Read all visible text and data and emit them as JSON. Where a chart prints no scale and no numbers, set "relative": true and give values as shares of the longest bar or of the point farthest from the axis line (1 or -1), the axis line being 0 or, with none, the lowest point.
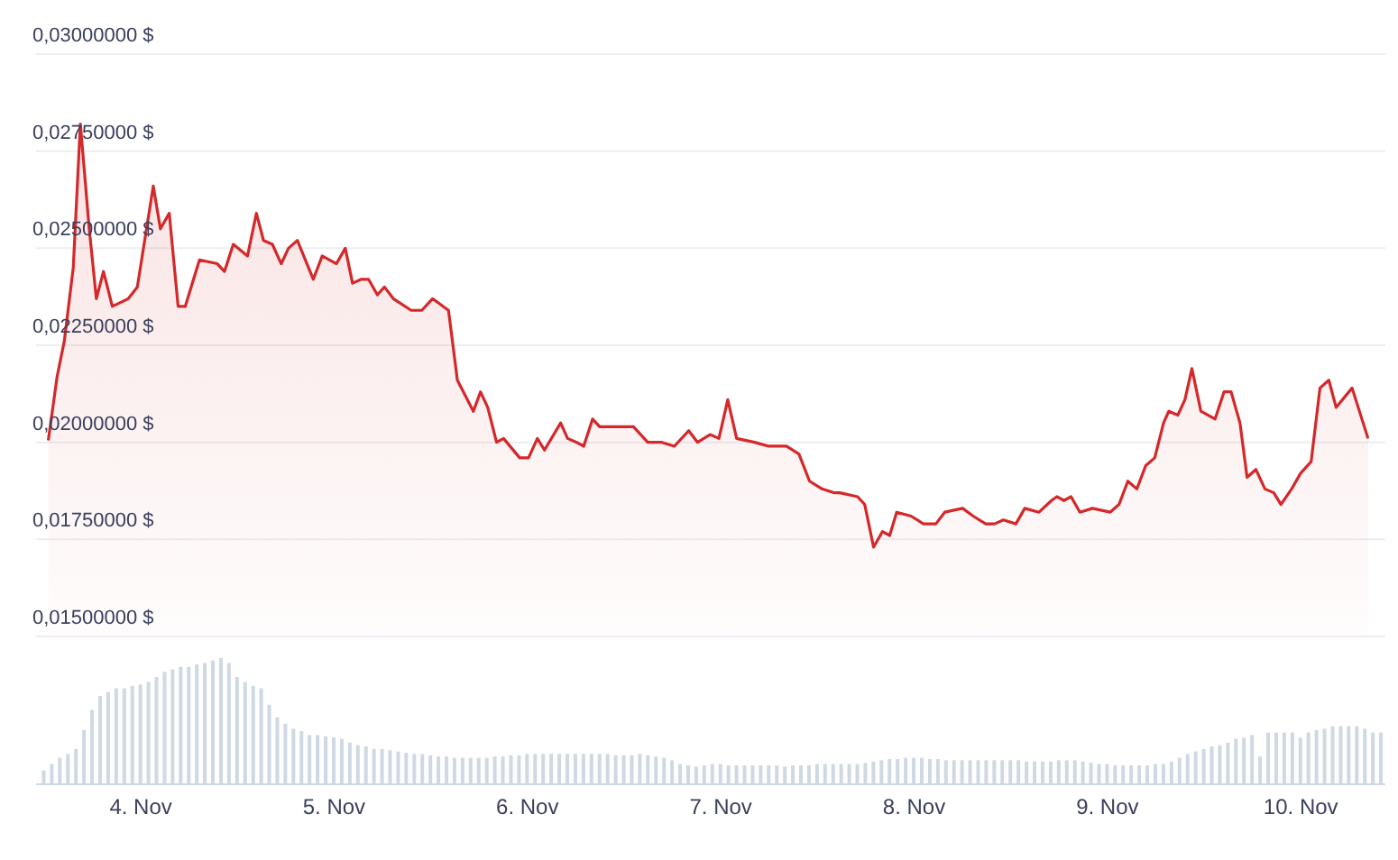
{
  "chart_data": [
    {
      "type": "area",
      "color": "#d4282a",
      "tick_labels": "y",
      "grid": "y",
      "xlim": [
        "--11-03T11:00",
        "--11-10T10:30"
      ],
      "ylim": [
        0.015,
        0.03
      ],
      "yticks": [
        {
          "value": 0.015,
          "label": "0,01500000 $"
        },
        {
          "value": 0.0175,
          "label": "0,01750000 $"
        },
        {
          "value": 0.02,
          "label": "0,02000000 $"
        },
        {
          "value": 0.0225,
          "label": "0,02250000 $"
        },
        {
          "value": 0.025,
          "label": "0,02500000 $"
        },
        {
          "value": 0.0275,
          "label": "0,02750000 $"
        },
        {
          "value": 0.03,
          "label": "0,03000000 $"
        }
      ],
      "x": [
        "--11-03T12:31",
        "--11-03T13:37",
        "--11-03T14:30",
        "--11-03T15:37",
        "--11-03T16:30",
        "--11-03T17:36",
        "--11-03T18:29",
        "--11-03T19:22",
        "--11-03T20:28",
        "--11-03T22:27",
        "--11-03T23:34",
        "--11-04T01:33",
        "--11-04T02:26",
        "--11-04T03:32",
        "--11-04T04:38",
        "--11-04T05:31",
        "--11-04T07:17",
        "--11-04T09:30",
        "--11-04T10:23",
        "--11-04T11:29",
        "--11-04T13:15",
        "--11-04T14:21",
        "--11-04T15:14",
        "--11-04T16:20",
        "--11-04T17:26",
        "--11-04T18:20",
        "--11-04T19:26",
        "--11-04T21:25",
        "--11-04T22:31",
        "--11-05T00:17",
        "--11-05T01:23",
        "--11-05T02:17",
        "--11-05T03:23",
        "--11-05T04:16",
        "--11-05T05:22",
        "--11-05T06:15",
        "--11-05T07:21",
        "--11-05T09:34",
        "--11-05T10:53",
        "--11-05T12:13",
        "--11-05T14:12",
        "--11-05T15:18",
        "--11-05T17:17",
        "--11-05T18:10",
        "--11-05T19:04",
        "--11-05T20:10",
        "--11-05T21:02",
        "--11-05T23:02",
        "--11-06T00:08",
        "--11-06T01:14",
        "--11-06T02:07",
        "--11-06T04:07",
        "--11-06T04:59",
        "--11-06T06:06",
        "--11-06T06:59",
        "--11-06T08:05",
        "--11-06T08:58",
        "--11-06T12:04",
        "--11-06T13:10",
        "--11-06T14:56",
        "--11-06T16:41",
        "--11-06T18:14",
        "--11-06T20:01",
        "--11-06T21:07",
        "--11-06T22:40",
        "--11-06T23:46",
        "--11-07T00:52",
        "--11-07T01:58",
        "--11-07T04:11",
        "--11-07T05:56",
        "--11-07T08:09",
        "--11-07T09:42",
        "--11-07T11:01",
        "--11-07T12:34",
        "--11-07T14:07",
        "--11-07T14:46",
        "--11-07T16:59",
        "--11-07T17:52",
        "--11-07T18:58",
        "--11-07T20:04",
        "--11-07T20:58",
        "--11-07T21:50",
        "--11-07T23:37",
        "--11-08T01:09",
        "--11-08T02:42",
        "--11-08T03:48",
        "--11-08T06:01",
        "--11-08T07:20",
        "--11-08T08:53",
        "--11-08T09:59",
        "--11-08T11:05",
        "--11-08T12:38",
        "--11-08T13:44",
        "--11-08T15:30",
        "--11-08T17:03",
        "--11-08T17:43",
        "--11-08T18:36",
        "--11-08T19:29",
        "--11-08T20:35",
        "--11-08T22:08",
        "--11-09T00:20",
        "--11-09T01:26",
        "--11-09T02:32",
        "--11-09T03:39",
        "--11-09T04:45",
        "--11-09T05:52",
        "--11-09T06:58",
        "--11-09T07:37",
        "--11-09T08:44",
        "--11-09T09:37",
        "--11-09T10:29",
        "--11-09T11:36",
        "--11-09T13:22",
        "--11-09T14:28",
        "--11-09T15:21",
        "--11-09T16:27",
        "--11-09T17:20",
        "--11-09T18:26",
        "--11-09T19:33",
        "--11-09T20:39",
        "--11-09T21:32",
        "--11-09T22:52",
        "--11-09T23:58",
        "--11-10T01:17",
        "--11-10T02:23",
        "--11-10T03:29",
        "--11-10T04:23",
        "--11-10T06:22",
        "--11-10T08:21"
      ],
      "values": [
        0.02005,
        0.0217,
        0.0226,
        0.0245,
        0.0282,
        0.0255,
        0.0237,
        0.0244,
        0.0235,
        0.0237,
        0.024,
        0.0266,
        0.0255,
        0.0259,
        0.0235,
        0.0235,
        0.0247,
        0.0246,
        0.0244,
        0.0251,
        0.0248,
        0.0259,
        0.0252,
        0.0251,
        0.0246,
        0.025,
        0.0252,
        0.0242,
        0.0248,
        0.0246,
        0.025,
        0.0241,
        0.0242,
        0.0242,
        0.0238,
        0.024,
        0.0237,
        0.0234,
        0.0234,
        0.0237,
        0.0234,
        0.0216,
        0.0208,
        0.0213,
        0.0209,
        0.02,
        0.0201,
        0.0196,
        0.0196,
        0.0201,
        0.0198,
        0.0205,
        0.0201,
        0.02,
        0.0199,
        0.0206,
        0.0204,
        0.0204,
        0.0204,
        0.02,
        0.02,
        0.0199,
        0.0203,
        0.02,
        0.0202,
        0.0201,
        0.0211,
        0.0201,
        0.02,
        0.0199,
        0.0199,
        0.0197,
        0.019,
        0.0188,
        0.0187,
        0.0187,
        0.0186,
        0.0184,
        0.0173,
        0.0177,
        0.0176,
        0.0182,
        0.0181,
        0.0179,
        0.0179,
        0.0182,
        0.0183,
        0.0181,
        0.0179,
        0.0179,
        0.018,
        0.0179,
        0.0183,
        0.0182,
        0.0185,
        0.0186,
        0.0185,
        0.0186,
        0.0182,
        0.0183,
        0.0182,
        0.0184,
        0.019,
        0.0188,
        0.0194,
        0.0196,
        0.0205,
        0.0208,
        0.0207,
        0.0211,
        0.0219,
        0.0208,
        0.0206,
        0.0213,
        0.0213,
        0.0205,
        0.0191,
        0.0193,
        0.0188,
        0.0187,
        0.0184,
        0.0188,
        0.0192,
        0.0195,
        0.0214,
        0.0216,
        0.0209,
        0.0214,
        0.0201
      ]
    },
    {
      "type": "bar",
      "color": "#cfd8e3",
      "relative": true,
      "tick_labels": "x",
      "xlim": [
        "--11-03T11:00",
        "--11-10T10:30"
      ],
      "xticks": [
        {
          "value": "--11-04",
          "label": "4. Nov"
        },
        {
          "value": "--11-05",
          "label": "5. Nov"
        },
        {
          "value": "--11-06",
          "label": "6. Nov"
        },
        {
          "value": "--11-07",
          "label": "7. Nov"
        },
        {
          "value": "--11-08",
          "label": "8. Nov"
        },
        {
          "value": "--11-09",
          "label": "9. Nov"
        },
        {
          "value": "--11-10",
          "label": "10. Nov"
        }
      ],
      "x": [
        "--11-03T12:00",
        "--11-03T13:00",
        "--11-03T14:00",
        "--11-03T15:00",
        "--11-03T16:00",
        "--11-03T17:00",
        "--11-03T18:00",
        "--11-03T19:00",
        "--11-03T20:00",
        "--11-03T21:00",
        "--11-03T22:00",
        "--11-03T23:00",
        "--11-04T00:00",
        "--11-04T01:00",
        "--11-04T02:00",
        "--11-04T03:00",
        "--11-04T04:00",
        "--11-04T05:00",
        "--11-04T06:00",
        "--11-04T07:00",
        "--11-04T08:00",
        "--11-04T09:00",
        "--11-04T10:00",
        "--11-04T11:00",
        "--11-04T12:00",
        "--11-04T13:00",
        "--11-04T14:00",
        "--11-04T15:00",
        "--11-04T16:00",
        "--11-04T17:00",
        "--11-04T18:00",
        "--11-04T19:00",
        "--11-04T20:00",
        "--11-04T21:00",
        "--11-04T22:00",
        "--11-04T23:00",
        "--11-05T00:00",
        "--11-05T01:00",
        "--11-05T02:00",
        "--11-05T03:00",
        "--11-05T04:00",
        "--11-05T05:00",
        "--11-05T06:00",
        "--11-05T07:00",
        "--11-05T08:00",
        "--11-05T09:00",
        "--11-05T10:00",
        "--11-05T11:00",
        "--11-05T12:00",
        "--11-05T13:00",
        "--11-05T14:00",
        "--11-05T15:00",
        "--11-05T16:00",
        "--11-05T17:00",
        "--11-05T18:00",
        "--11-05T19:00",
        "--11-05T20:00",
        "--11-05T21:00",
        "--11-05T22:00",
        "--11-05T23:00",
        "--11-06T00:00",
        "--11-06T01:00",
        "--11-06T02:00",
        "--11-06T03:00",
        "--11-06T04:00",
        "--11-06T05:00",
        "--11-06T06:00",
        "--11-06T07:00",
        "--11-06T08:00",
        "--11-06T09:00",
        "--11-06T10:00",
        "--11-06T11:00",
        "--11-06T12:00",
        "--11-06T13:00",
        "--11-06T14:00",
        "--11-06T15:00",
        "--11-06T16:00",
        "--11-06T17:00",
        "--11-06T18:00",
        "--11-06T19:00",
        "--11-06T20:00",
        "--11-06T21:00",
        "--11-06T22:00",
        "--11-06T23:00",
        "--11-07T00:00",
        "--11-07T01:00",
        "--11-07T02:00",
        "--11-07T03:00",
        "--11-07T04:00",
        "--11-07T05:00",
        "--11-07T06:00",
        "--11-07T07:00",
        "--11-07T08:00",
        "--11-07T09:00",
        "--11-07T10:00",
        "--11-07T11:00",
        "--11-07T12:00",
        "--11-07T13:00",
        "--11-07T14:00",
        "--11-07T15:00",
        "--11-07T16:00",
        "--11-07T17:00",
        "--11-07T18:00",
        "--11-07T19:00",
        "--11-07T20:00",
        "--11-07T21:00",
        "--11-07T22:00",
        "--11-07T23:00",
        "--11-08T00:00",
        "--11-08T01:00",
        "--11-08T02:00",
        "--11-08T03:00",
        "--11-08T04:00",
        "--11-08T05:00",
        "--11-08T06:00",
        "--11-08T07:00",
        "--11-08T08:00",
        "--11-08T09:00",
        "--11-08T10:00",
        "--11-08T11:00",
        "--11-08T12:00",
        "--11-08T13:00",
        "--11-08T14:00",
        "--11-08T15:00",
        "--11-08T16:00",
        "--11-08T17:00",
        "--11-08T18:00",
        "--11-08T19:00",
        "--11-08T20:00",
        "--11-08T21:00",
        "--11-08T22:00",
        "--11-08T23:00",
        "--11-09T00:00",
        "--11-09T01:00",
        "--11-09T02:00",
        "--11-09T03:00",
        "--11-09T04:00",
        "--11-09T05:00",
        "--11-09T06:00",
        "--11-09T07:00",
        "--11-09T08:00",
        "--11-09T09:00",
        "--11-09T10:00",
        "--11-09T11:00",
        "--11-09T12:00",
        "--11-09T13:00",
        "--11-09T14:00",
        "--11-09T15:00",
        "--11-09T16:00",
        "--11-09T17:00",
        "--11-09T18:00",
        "--11-09T19:00",
        "--11-09T20:00",
        "--11-09T21:00",
        "--11-09T22:00",
        "--11-09T23:00",
        "--11-10T00:00",
        "--11-10T01:00",
        "--11-10T02:00",
        "--11-10T03:00",
        "--11-10T04:00",
        "--11-10T05:00",
        "--11-10T06:00",
        "--11-10T07:00",
        "--11-10T08:00",
        "--11-10T09:00",
        "--11-10T10:00"
      ],
      "values": [
        0.11,
        0.16,
        0.21,
        0.24,
        0.28,
        0.43,
        0.59,
        0.7,
        0.73,
        0.76,
        0.76,
        0.78,
        0.79,
        0.81,
        0.85,
        0.89,
        0.91,
        0.93,
        0.93,
        0.95,
        0.96,
        0.98,
        1,
        0.96,
        0.85,
        0.81,
        0.78,
        0.76,
        0.63,
        0.53,
        0.48,
        0.44,
        0.42,
        0.39,
        0.39,
        0.38,
        0.37,
        0.36,
        0.33,
        0.31,
        0.3,
        0.28,
        0.28,
        0.27,
        0.26,
        0.25,
        0.24,
        0.24,
        0.23,
        0.22,
        0.22,
        0.21,
        0.21,
        0.21,
        0.21,
        0.21,
        0.22,
        0.22,
        0.23,
        0.23,
        0.24,
        0.24,
        0.24,
        0.24,
        0.24,
        0.24,
        0.24,
        0.24,
        0.24,
        0.24,
        0.24,
        0.23,
        0.23,
        0.23,
        0.24,
        0.23,
        0.22,
        0.21,
        0.19,
        0.16,
        0.15,
        0.14,
        0.15,
        0.16,
        0.16,
        0.15,
        0.15,
        0.15,
        0.15,
        0.15,
        0.15,
        0.15,
        0.14,
        0.15,
        0.15,
        0.15,
        0.16,
        0.16,
        0.16,
        0.16,
        0.16,
        0.16,
        0.17,
        0.18,
        0.19,
        0.2,
        0.2,
        0.21,
        0.21,
        0.21,
        0.2,
        0.2,
        0.19,
        0.19,
        0.19,
        0.19,
        0.19,
        0.19,
        0.19,
        0.19,
        0.19,
        0.19,
        0.18,
        0.18,
        0.18,
        0.18,
        0.19,
        0.19,
        0.19,
        0.18,
        0.17,
        0.16,
        0.16,
        0.15,
        0.15,
        0.15,
        0.15,
        0.15,
        0.16,
        0.16,
        0.18,
        0.21,
        0.24,
        0.26,
        0.28,
        0.3,
        0.31,
        0.33,
        0.36,
        0.37,
        0.39,
        0.22,
        0.41,
        0.41,
        0.41,
        0.41,
        0.37,
        0.41,
        0.43,
        0.44,
        0.46,
        0.46,
        0.46,
        0.46,
        0.44,
        0.41,
        0.41
      ]
    }
  ]
}
